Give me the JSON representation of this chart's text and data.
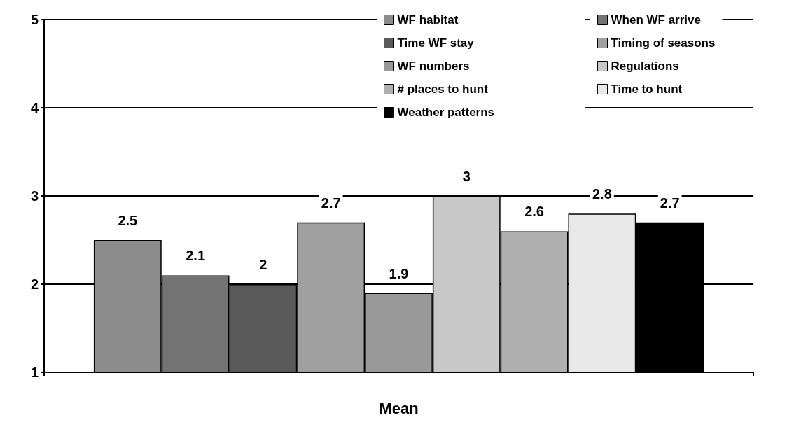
{
  "chart_data": {
    "type": "bar",
    "categories": [
      "Mean"
    ],
    "series": [
      {
        "name": "WF habitat",
        "color": "#8c8c8c",
        "values": [
          2.5
        ]
      },
      {
        "name": "When WF arrive",
        "color": "#737373",
        "values": [
          2.1
        ]
      },
      {
        "name": "Time WF stay",
        "color": "#595959",
        "values": [
          2
        ]
      },
      {
        "name": "Timing of seasons",
        "color": "#a0a0a0",
        "values": [
          2.7
        ]
      },
      {
        "name": "WF numbers",
        "color": "#999999",
        "values": [
          1.9
        ]
      },
      {
        "name": "Regulations",
        "color": "#c8c8c8",
        "values": [
          3
        ]
      },
      {
        "name": "# places to hunt",
        "color": "#b0b0b0",
        "values": [
          2.6
        ]
      },
      {
        "name": "Time to hunt",
        "color": "#e8e8e8",
        "values": [
          2.8
        ]
      },
      {
        "name": "Weather patterns",
        "color": "#000000",
        "values": [
          2.7
        ]
      }
    ],
    "ylim": [
      1,
      5
    ],
    "yticks": [
      1,
      2,
      3,
      4,
      5
    ],
    "grid": "y",
    "legend": "top right",
    "data_labels": true
  }
}
